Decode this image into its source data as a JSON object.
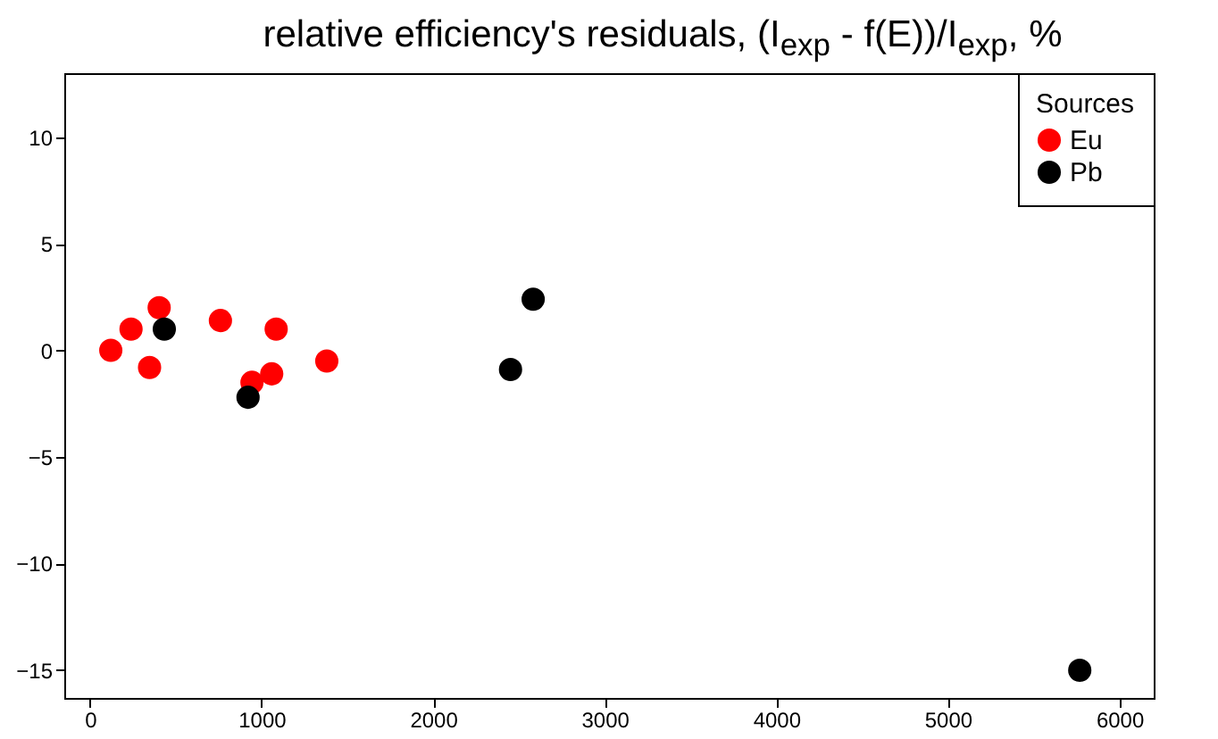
{
  "chart_data": {
    "type": "scatter",
    "title": "relative efficiency's residuals, (I$_{exp}$ - f(E))/I$_{exp}$, %",
    "legend_title": "Sources",
    "legend": "top right",
    "marker": "circle",
    "grid": false,
    "xlim": [
      -150,
      6200
    ],
    "xticks": [
      0,
      1000,
      2000,
      3000,
      4000,
      5000,
      6000
    ],
    "ylim": [
      -16.3,
      13
    ],
    "yticks": [
      -15,
      -10,
      -5,
      0,
      5,
      10
    ],
    "series": [
      {
        "name": "Eu",
        "color": "#ff0000",
        "x": [
          121,
          239,
          347,
          403,
          760,
          944,
          1059,
          1085,
          1380
        ],
        "values": [
          0,
          1.0,
          -0.8,
          2.0,
          1.4,
          -1.5,
          -1.1,
          1.0,
          -0.5
        ]
      },
      {
        "name": "Pb",
        "color": "#000000",
        "x": [
          433,
          921,
          2451,
          2583,
          5769
        ],
        "values": [
          1.0,
          -2.2,
          -0.9,
          2.4,
          -15
        ]
      }
    ]
  }
}
